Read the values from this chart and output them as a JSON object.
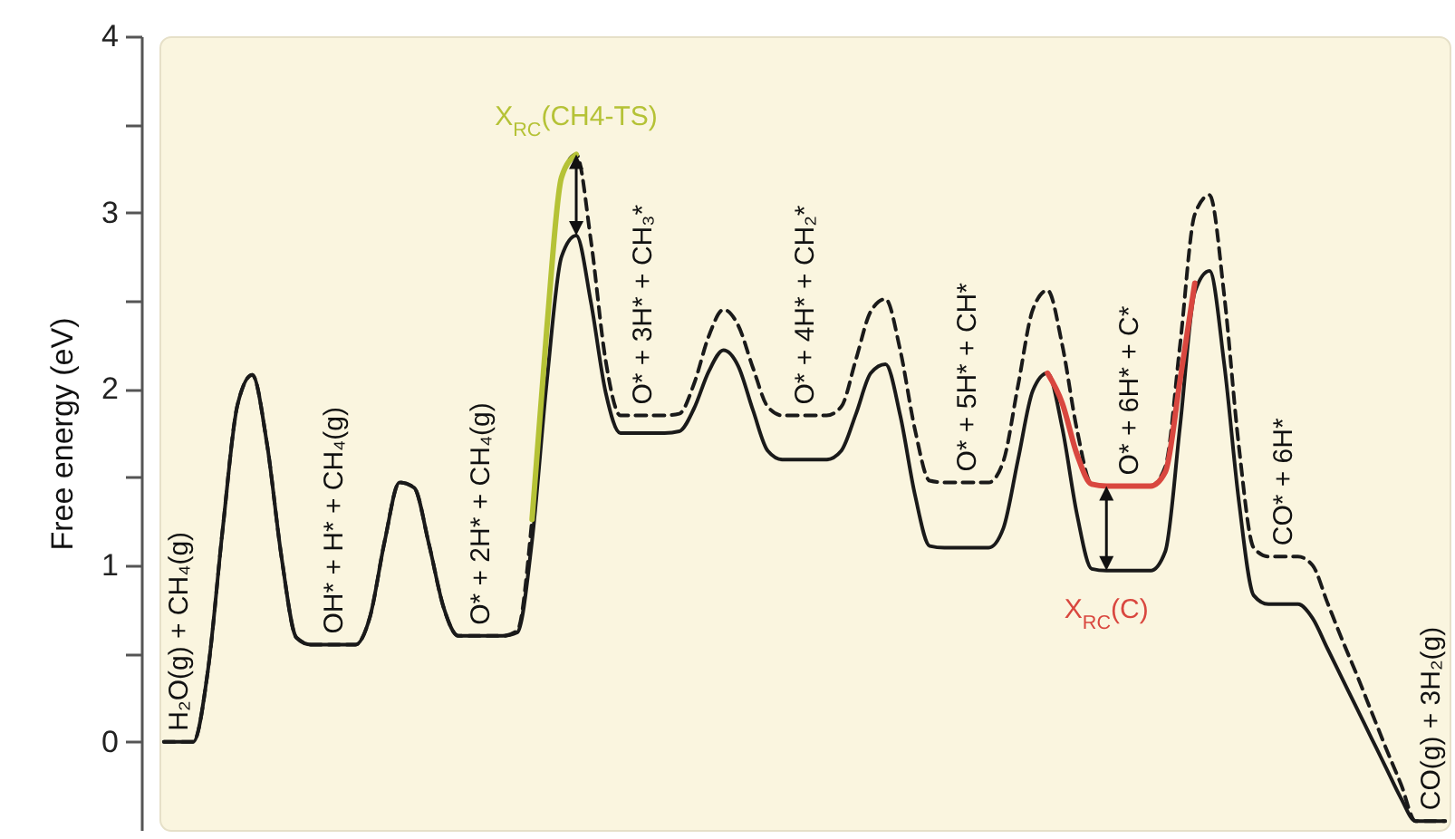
{
  "chart_data": {
    "type": "line",
    "ylabel": "Free energy (eV)",
    "categories": [
      null,
      null,
      null,
      null,
      null,
      null,
      null,
      null,
      null,
      null,
      null,
      null,
      null,
      null,
      null,
      null,
      null,
      null,
      null,
      null,
      null,
      null,
      null,
      null,
      null,
      null,
      null,
      null,
      null,
      null,
      null,
      null,
      null,
      null,
      null,
      null,
      null,
      null,
      null,
      null,
      null,
      null,
      null,
      null,
      null,
      null,
      null,
      null,
      null,
      null,
      null,
      null,
      null,
      null,
      null,
      null,
      null,
      null,
      null,
      null,
      null,
      null,
      null,
      null,
      null,
      null,
      null,
      null,
      null,
      null,
      null,
      null,
      null,
      null,
      null,
      null,
      null,
      null,
      null,
      null,
      null,
      null,
      null,
      null,
      null,
      null,
      null,
      null
    ],
    "ylim": [
      -0.5,
      4
    ],
    "yticks": [
      0,
      {
        "value": 0.5,
        "label": null
      },
      1,
      {
        "value": 1.5,
        "label": null
      },
      2,
      {
        "value": 2.5,
        "label": null
      },
      3,
      {
        "value": 3.5,
        "label": null
      },
      4
    ],
    "tick_labels": "y",
    "legend": false,
    "series": [
      {
        "color": "#1a1a1a",
        "line_style": "solid",
        "values": [
          0,
          0,
          0,
          0.41,
          1.21,
          1.91,
          2.08,
          1.69,
          1.04,
          0.59,
          0.55,
          0.55,
          0.55,
          0.55,
          0.71,
          1.14,
          1.47,
          1.44,
          1.12,
          0.76,
          0.6,
          0.6,
          0.6,
          0.6,
          0.62,
          1.14,
          2.04,
          2.75,
          2.87,
          2.49,
          1.98,
          1.75,
          1.75,
          1.75,
          1.75,
          1.76,
          1.89,
          2.1,
          2.22,
          2.13,
          1.88,
          1.65,
          1.6,
          1.6,
          1.6,
          1.6,
          1.65,
          1.86,
          2.09,
          2.14,
          1.85,
          1.4,
          1.11,
          1.1,
          1.1,
          1.1,
          1.1,
          1.21,
          1.6,
          1.99,
          2.09,
          1.78,
          1.29,
          0.98,
          0.97,
          0.97,
          0.97,
          0.97,
          1.08,
          1.79,
          2.55,
          2.67,
          2.14,
          1.36,
          0.83,
          0.78,
          0.78,
          0.78,
          0.7,
          0.53,
          0.36,
          0.19,
          0.02,
          -0.15,
          -0.32,
          -0.45,
          -0.45,
          -0.45
        ]
      },
      {
        "color": "#1a1a1a",
        "line_style": "dashed",
        "values": [
          0,
          0,
          0,
          0.41,
          1.21,
          1.91,
          2.08,
          1.69,
          1.04,
          0.59,
          0.55,
          0.55,
          0.55,
          0.55,
          0.71,
          1.14,
          1.47,
          1.44,
          1.12,
          0.76,
          0.6,
          0.6,
          0.6,
          0.6,
          0.63,
          1.26,
          2.34,
          3.2,
          3.33,
          2.84,
          2.16,
          1.85,
          1.85,
          1.85,
          1.85,
          1.86,
          2.03,
          2.3,
          2.45,
          2.36,
          2.12,
          1.9,
          1.85,
          1.85,
          1.85,
          1.85,
          1.9,
          2.17,
          2.44,
          2.51,
          2.22,
          1.77,
          1.48,
          1.47,
          1.47,
          1.47,
          1.47,
          1.59,
          2.02,
          2.45,
          2.56,
          2.25,
          1.77,
          1.46,
          1.45,
          1.45,
          1.45,
          1.45,
          1.56,
          2.25,
          2.99,
          3.1,
          2.53,
          1.67,
          1.1,
          1.05,
          1.05,
          1.05,
          1,
          0.79,
          0.58,
          0.38,
          0.17,
          -0.04,
          -0.24,
          -0.45,
          -0.45,
          -0.45
        ]
      },
      {
        "name": "X$_{RC}$(CH4-TS)",
        "color": "#b5c236",
        "line_style": "solid",
        "values": [
          null,
          null,
          null,
          null,
          null,
          null,
          null,
          null,
          null,
          null,
          null,
          null,
          null,
          null,
          null,
          null,
          null,
          null,
          null,
          null,
          null,
          null,
          null,
          null,
          null,
          1.26,
          2.34,
          3.2,
          3.33,
          null,
          null,
          null,
          null,
          null,
          null,
          null,
          null,
          null,
          null,
          null,
          null,
          null,
          null,
          null,
          null,
          null,
          null,
          null,
          null,
          null,
          null,
          null,
          null,
          null,
          null,
          null,
          null,
          null,
          null,
          null,
          null,
          null,
          null,
          null,
          null,
          null,
          null,
          null,
          null,
          null,
          null,
          null,
          null,
          null,
          null,
          null,
          null,
          null,
          null,
          null,
          null,
          null,
          null,
          null,
          null,
          null,
          null,
          null
        ]
      },
      {
        "name": "X$_{RC}$(C)",
        "color": "#d9473f",
        "line_style": "solid",
        "values": [
          null,
          null,
          null,
          null,
          null,
          null,
          null,
          null,
          null,
          null,
          null,
          null,
          null,
          null,
          null,
          null,
          null,
          null,
          null,
          null,
          null,
          null,
          null,
          null,
          null,
          null,
          null,
          null,
          null,
          null,
          null,
          null,
          null,
          null,
          null,
          null,
          null,
          null,
          null,
          null,
          null,
          null,
          null,
          null,
          null,
          null,
          null,
          null,
          null,
          null,
          null,
          null,
          null,
          null,
          null,
          null,
          null,
          null,
          null,
          null,
          2.09,
          1.92,
          1.63,
          1.46,
          1.45,
          1.45,
          1.45,
          1.45,
          1.53,
          2.05,
          2.6,
          null,
          null,
          null,
          null,
          null,
          null,
          null,
          null,
          null,
          null,
          null,
          null,
          null,
          null,
          null,
          null,
          null
        ]
      }
    ],
    "annotations": [
      "H₂O(g) + CH₄(g)",
      "OH* + H* + CH₄(g)",
      "O* + 2H* + CH₄(g)",
      "O* + 3H* + CH₃*",
      "O* + 4H* + CH₂*",
      "O* + 5H* + CH*",
      "O* + 6H* + C*",
      "CO* + 6H*",
      "CO(g) + 3H₂(g)"
    ]
  }
}
